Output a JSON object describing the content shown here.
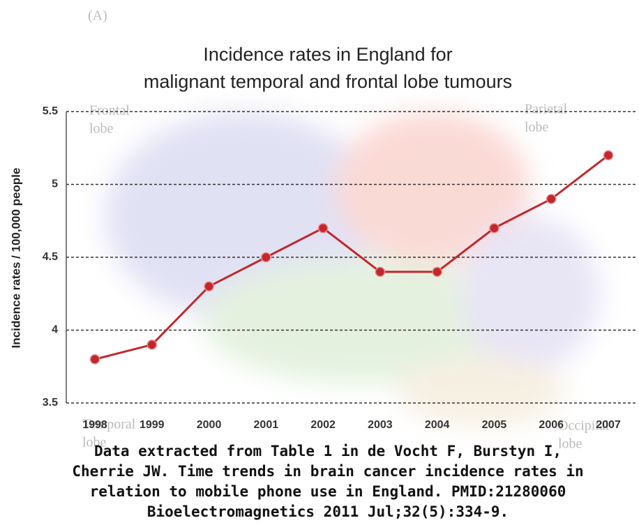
{
  "chart_data": {
    "type": "line",
    "panel_label": "(A)",
    "title": [
      "Incidence rates in England for",
      "malignant temporal and frontal lobe tumours"
    ],
    "y_label": "Incidence rates / 100,000 people",
    "categories": [
      "1998",
      "1999",
      "2000",
      "2001",
      "2002",
      "2003",
      "2004",
      "2005",
      "2006",
      "2007"
    ],
    "values": [
      3.8,
      3.9,
      4.3,
      4.5,
      4.7,
      4.4,
      4.4,
      4.7,
      4.9,
      5.2
    ],
    "color": "#c0282d",
    "ylim": [
      3.5,
      5.5
    ],
    "yticks": [
      3.5,
      4,
      4.5,
      5,
      5.5
    ],
    "grid": true,
    "annotations": [
      [
        "Frontal",
        "lobe"
      ],
      [
        "Parietal",
        "lobe"
      ],
      [
        "Temporal",
        "lobe"
      ],
      [
        "Occipital",
        "lobe"
      ]
    ],
    "caption": [
      "Data extracted from Table 1 in de Vocht F, Burstyn I,",
      "Cherrie JW.  Time trends in brain cancer incidence rates in",
      "relation to mobile phone use in England.  PMID:21280060",
      "Bioelectromagnetics 2011 Jul;32(5):334-9."
    ]
  }
}
